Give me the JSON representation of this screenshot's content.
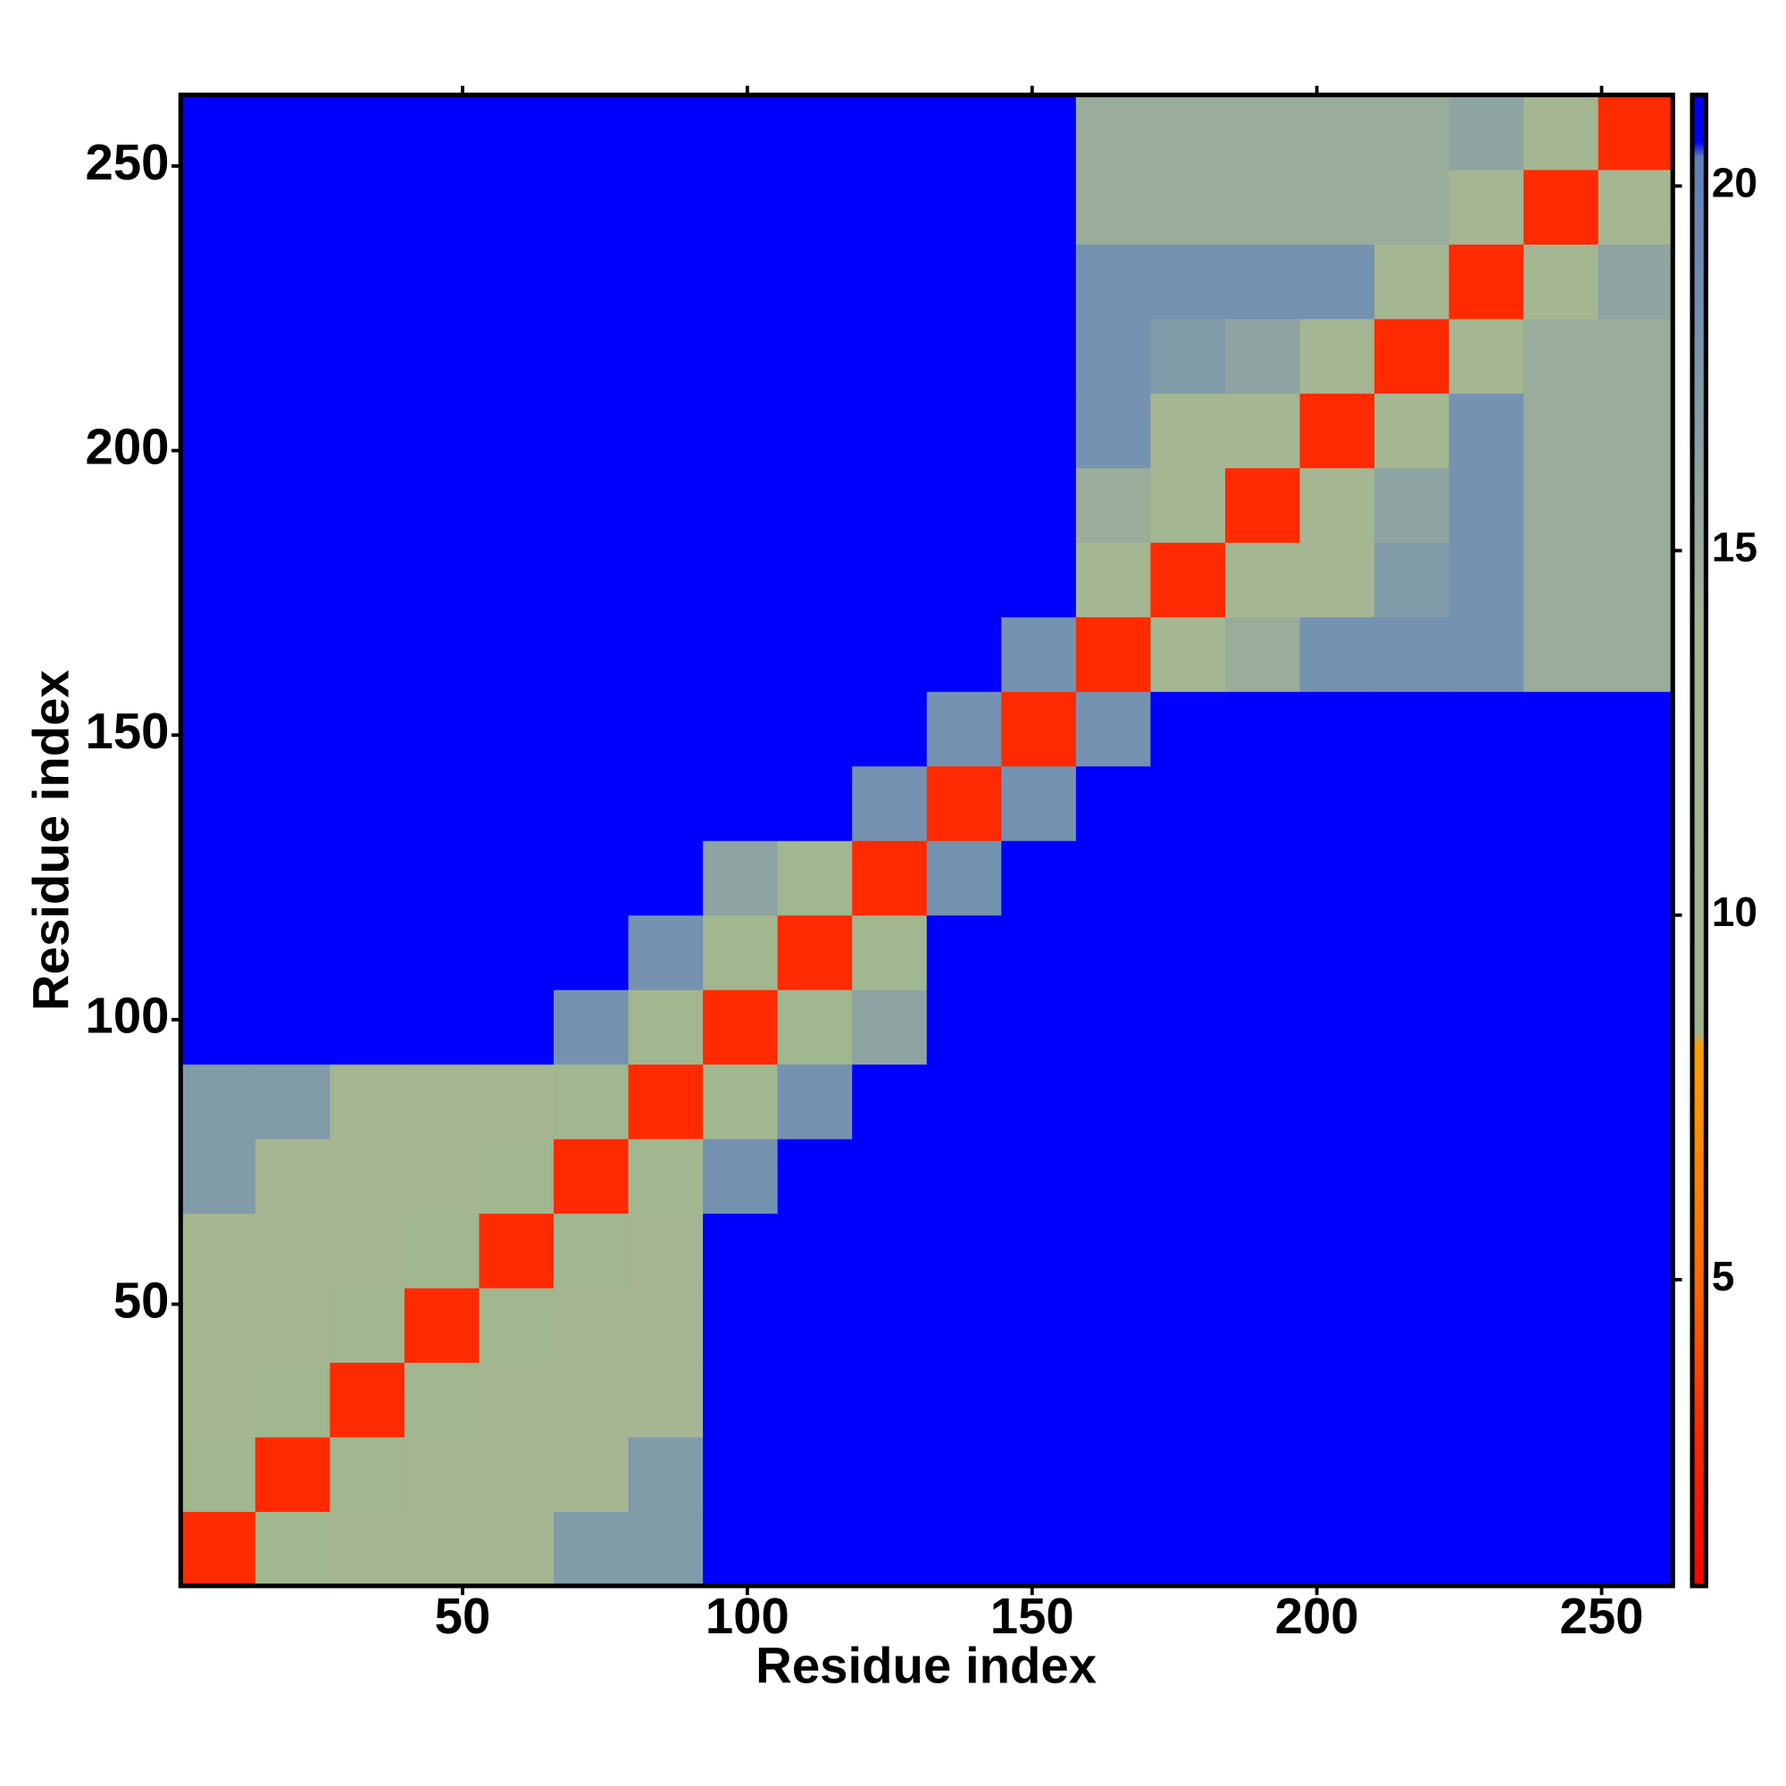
{
  "chart_data": {
    "type": "heatmap",
    "x_label": "Residue index",
    "y_label": "Residue index",
    "xlim": [
      0.5,
      262.5
    ],
    "ylim": [
      0.5,
      262.5
    ],
    "xticks": [
      50,
      100,
      150,
      200,
      250
    ],
    "yticks": [
      50,
      100,
      150,
      200,
      250
    ],
    "xbins": [
      0.5,
      13.6,
      26.7,
      39.8,
      52.9,
      66,
      79.1,
      92.2,
      105.3,
      118.4,
      131.5,
      144.6,
      157.7,
      170.8,
      183.9,
      197,
      210.1,
      223.2,
      236.3,
      249.4,
      262.5
    ],
    "ybins": [
      0.5,
      13.6,
      26.7,
      39.8,
      52.9,
      66,
      79.1,
      92.2,
      105.3,
      118.4,
      131.5,
      144.6,
      157.7,
      170.8,
      183.9,
      197,
      210.1,
      223.2,
      236.3,
      249.4,
      262.5
    ],
    "z": [
      [
        3,
        9,
        14,
        14,
        14,
        17,
        17,
        21,
        21,
        21,
        21,
        21,
        21,
        21,
        21,
        21,
        21,
        21,
        21,
        21
      ],
      [
        9,
        3,
        9,
        14,
        14,
        14,
        17,
        21,
        21,
        21,
        21,
        21,
        21,
        21,
        21,
        21,
        21,
        21,
        21,
        21
      ],
      [
        14,
        9,
        3,
        9,
        14,
        14,
        14,
        21,
        21,
        21,
        21,
        21,
        21,
        21,
        21,
        21,
        21,
        21,
        21,
        21
      ],
      [
        14,
        14,
        9,
        3,
        9,
        14,
        14,
        21,
        21,
        21,
        21,
        21,
        21,
        21,
        21,
        21,
        21,
        21,
        21,
        21
      ],
      [
        14,
        14,
        14,
        9,
        3,
        9,
        14,
        21,
        21,
        21,
        21,
        21,
        21,
        21,
        21,
        21,
        21,
        21,
        21,
        21
      ],
      [
        17,
        14,
        14,
        14,
        9,
        3,
        9,
        18,
        21,
        21,
        21,
        21,
        21,
        21,
        21,
        21,
        21,
        21,
        21,
        21
      ],
      [
        17,
        17,
        14,
        14,
        14,
        9,
        3,
        10,
        18,
        21,
        21,
        21,
        21,
        21,
        21,
        21,
        21,
        21,
        21,
        21
      ],
      [
        21,
        21,
        21,
        21,
        21,
        18,
        10,
        3,
        10,
        16,
        21,
        21,
        21,
        21,
        21,
        21,
        21,
        21,
        21,
        21
      ],
      [
        21,
        21,
        21,
        21,
        21,
        21,
        18,
        10,
        3,
        10,
        21,
        21,
        21,
        21,
        21,
        21,
        21,
        21,
        21,
        21
      ],
      [
        21,
        21,
        21,
        21,
        21,
        21,
        21,
        16,
        10,
        3,
        18,
        21,
        21,
        21,
        21,
        21,
        21,
        21,
        21,
        21
      ],
      [
        21,
        21,
        21,
        21,
        21,
        21,
        21,
        21,
        21,
        18,
        3,
        18,
        21,
        21,
        21,
        21,
        21,
        21,
        21,
        21
      ],
      [
        21,
        21,
        21,
        21,
        21,
        21,
        21,
        21,
        21,
        21,
        18,
        3,
        18,
        21,
        21,
        21,
        21,
        21,
        21,
        21
      ],
      [
        21,
        21,
        21,
        21,
        21,
        21,
        21,
        21,
        21,
        21,
        21,
        18,
        3,
        12,
        15,
        18,
        18,
        18,
        15,
        15
      ],
      [
        21,
        21,
        21,
        21,
        21,
        21,
        21,
        21,
        21,
        21,
        21,
        21,
        12,
        3,
        12,
        14,
        17,
        18,
        15,
        15
      ],
      [
        21,
        21,
        21,
        21,
        21,
        21,
        21,
        21,
        21,
        21,
        21,
        21,
        15,
        12,
        3,
        12,
        16,
        18,
        15,
        15
      ],
      [
        21,
        21,
        21,
        21,
        21,
        21,
        21,
        21,
        21,
        21,
        21,
        21,
        18,
        14,
        12,
        3,
        12,
        18,
        15,
        15
      ],
      [
        21,
        21,
        21,
        21,
        21,
        21,
        21,
        21,
        21,
        21,
        21,
        21,
        18,
        17,
        16,
        12,
        3,
        12,
        15,
        15
      ],
      [
        21,
        21,
        21,
        21,
        21,
        21,
        21,
        21,
        21,
        21,
        21,
        21,
        18,
        18,
        18,
        18,
        12,
        3,
        12,
        16
      ],
      [
        21,
        21,
        21,
        21,
        21,
        21,
        21,
        21,
        21,
        21,
        21,
        21,
        15,
        15,
        15,
        15,
        15,
        12,
        3,
        12
      ],
      [
        21,
        21,
        21,
        21,
        21,
        21,
        21,
        21,
        21,
        21,
        21,
        21,
        15,
        15,
        15,
        15,
        15,
        16,
        12,
        3
      ]
    ],
    "colorbar_lim": [
      0.8,
      21.25
    ],
    "colorbar_ticks": [
      5,
      10,
      15,
      20
    ],
    "colorscale": [
      [
        0.8,
        "#ff0000"
      ],
      [
        3,
        "#ff2a00"
      ],
      [
        5,
        "#ff6a00"
      ],
      [
        8.2,
        "#ffa000"
      ],
      [
        8.4,
        "#9fb78f"
      ],
      [
        14,
        "#a6b693"
      ],
      [
        18,
        "#7592b0"
      ],
      [
        20.4,
        "#5c7fb8"
      ],
      [
        20.6,
        "#0000ff"
      ],
      [
        21.25,
        "#0000ff"
      ]
    ]
  }
}
